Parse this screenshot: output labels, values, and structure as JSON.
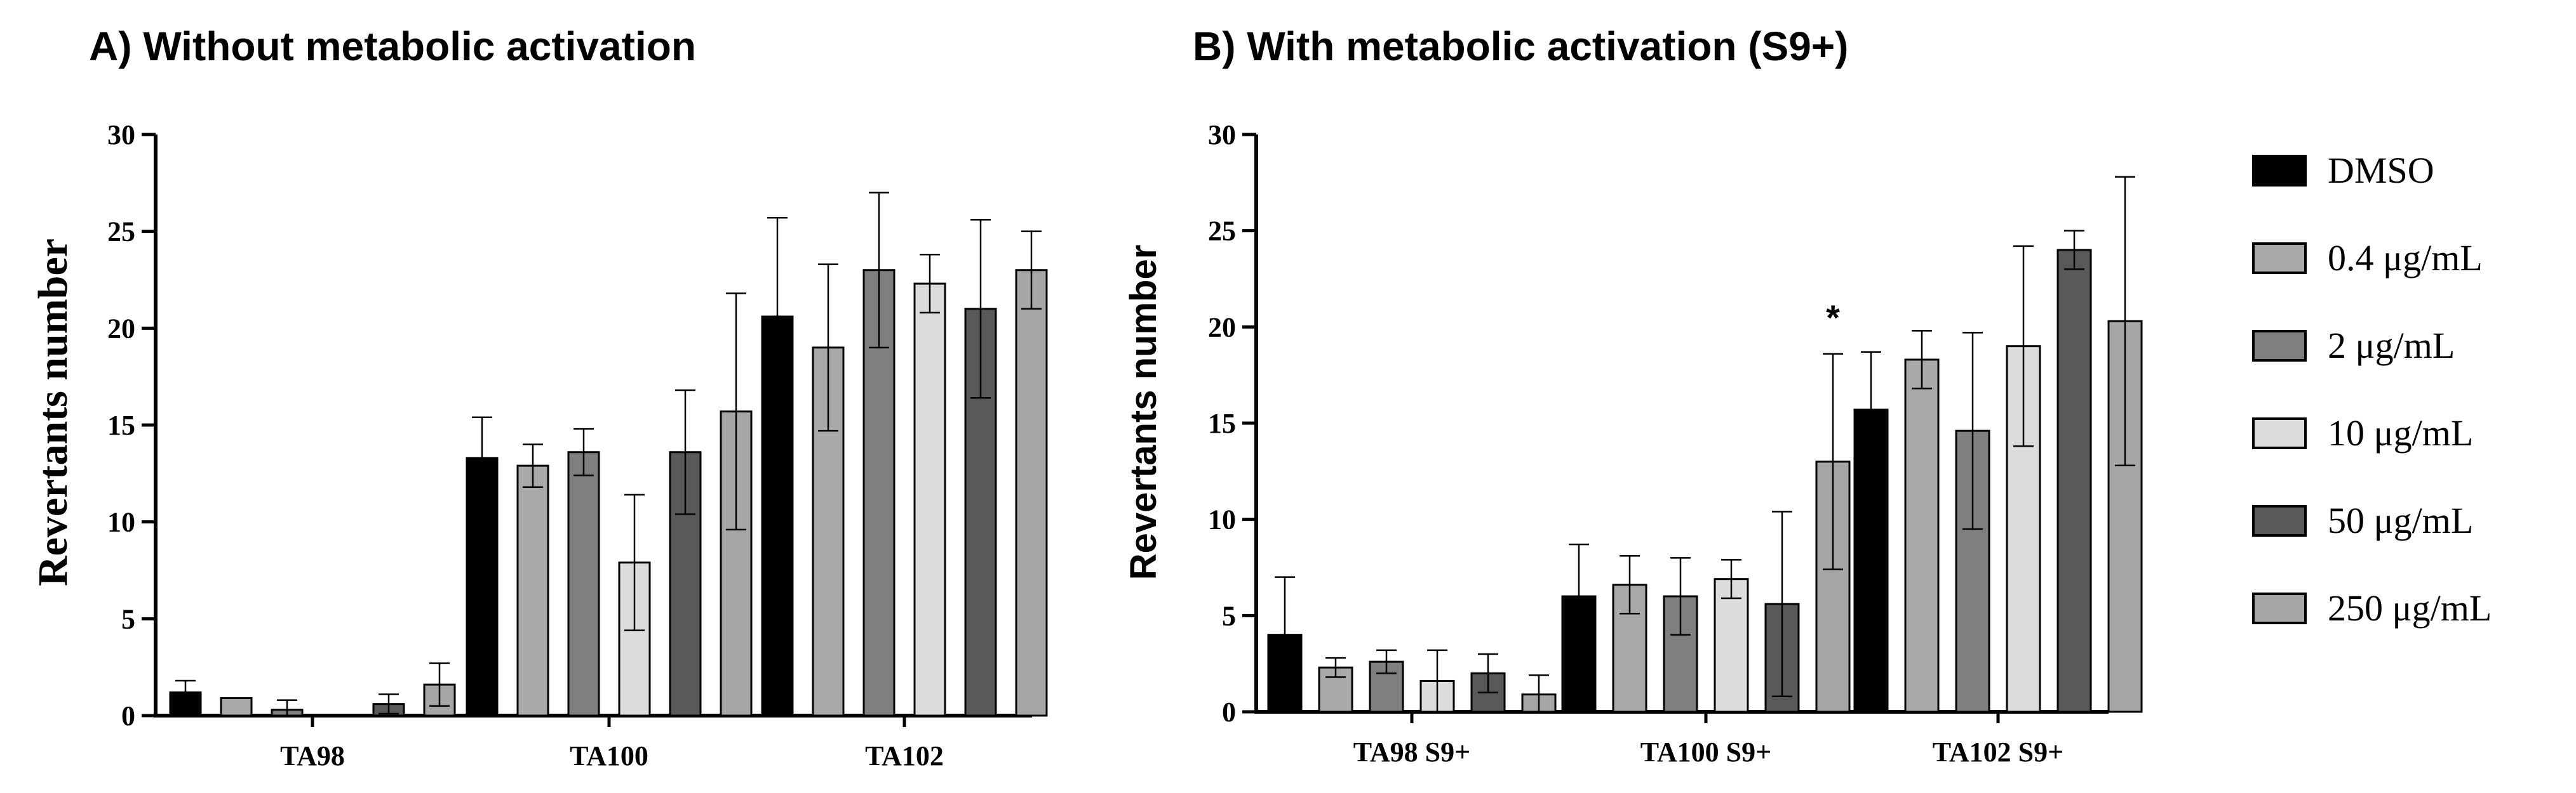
{
  "legend": {
    "entries": [
      {
        "label": "DMSO",
        "color": "#000000"
      },
      {
        "label": "0.4 μg/mL",
        "color": "#a9a9ac"
      },
      {
        "label": "2 μg/mL",
        "color": "#7f7f7f"
      },
      {
        "label": "10 μg/mL",
        "color": "#dcdcdc"
      },
      {
        "label": "50 μg/mL",
        "color": "#595959"
      },
      {
        "label": "250 μg/mL",
        "color": "#a6a6a8"
      }
    ]
  },
  "chart_data": [
    {
      "type": "bar",
      "title": "A) Without metabolic activation",
      "ylabel": "Revertants number",
      "xlabel": "",
      "ylim": [
        0,
        30
      ],
      "yticks": [
        "0",
        "5",
        "10",
        "15",
        "20",
        "25",
        "30"
      ],
      "categories": [
        "TA98",
        "TA100",
        "TA102"
      ],
      "series": [
        {
          "name": "DMSO",
          "values": [
            1.2,
            13.3,
            20.6
          ],
          "errors": [
            0.6,
            2.1,
            5.1
          ]
        },
        {
          "name": "0.4 μg/mL",
          "values": [
            0.9,
            12.9,
            19.0
          ],
          "errors": [
            0.0,
            1.1,
            4.3
          ]
        },
        {
          "name": "2 μg/mL",
          "values": [
            0.3,
            13.6,
            23.0
          ],
          "errors": [
            0.5,
            1.2,
            4.0
          ]
        },
        {
          "name": "10 μg/mL",
          "values": [
            0.0,
            7.9,
            22.3
          ],
          "errors": [
            0.0,
            3.5,
            1.5
          ]
        },
        {
          "name": "50 μg/mL",
          "values": [
            0.6,
            13.6,
            21.0
          ],
          "errors": [
            0.5,
            3.2,
            4.6
          ]
        },
        {
          "name": "250 μg/mL",
          "values": [
            1.6,
            15.7,
            23.0
          ],
          "errors": [
            1.1,
            6.1,
            2.0
          ]
        }
      ],
      "annotations": []
    },
    {
      "type": "bar",
      "title": "B) With metabolic activation (S9+)",
      "ylabel": "Revertants number",
      "xlabel": "",
      "ylim": [
        0,
        30
      ],
      "yticks": [
        "0",
        "5",
        "10",
        "15",
        "20",
        "25",
        "30"
      ],
      "categories": [
        "TA98 S9+",
        "TA100 S9+",
        "TA102 S9+"
      ],
      "series": [
        {
          "name": "DMSO",
          "values": [
            4.0,
            6.0,
            15.7
          ],
          "errors": [
            3.0,
            2.7,
            3.0
          ]
        },
        {
          "name": "0.4 μg/mL",
          "values": [
            2.3,
            6.6,
            18.3
          ],
          "errors": [
            0.5,
            1.5,
            1.5
          ]
        },
        {
          "name": "2 μg/mL",
          "values": [
            2.6,
            6.0,
            14.6
          ],
          "errors": [
            0.6,
            2.0,
            5.1
          ]
        },
        {
          "name": "10 μg/mL",
          "values": [
            1.6,
            6.9,
            19.0
          ],
          "errors": [
            1.6,
            1.0,
            5.2
          ]
        },
        {
          "name": "50 μg/mL",
          "values": [
            2.0,
            5.6,
            24.0
          ],
          "errors": [
            1.0,
            4.8,
            1.0
          ]
        },
        {
          "name": "250 μg/mL",
          "values": [
            0.9,
            13.0,
            20.3
          ],
          "errors": [
            1.0,
            5.6,
            7.5
          ]
        }
      ],
      "annotations": [
        {
          "text": "*",
          "category": 1,
          "series": 5
        }
      ]
    }
  ]
}
